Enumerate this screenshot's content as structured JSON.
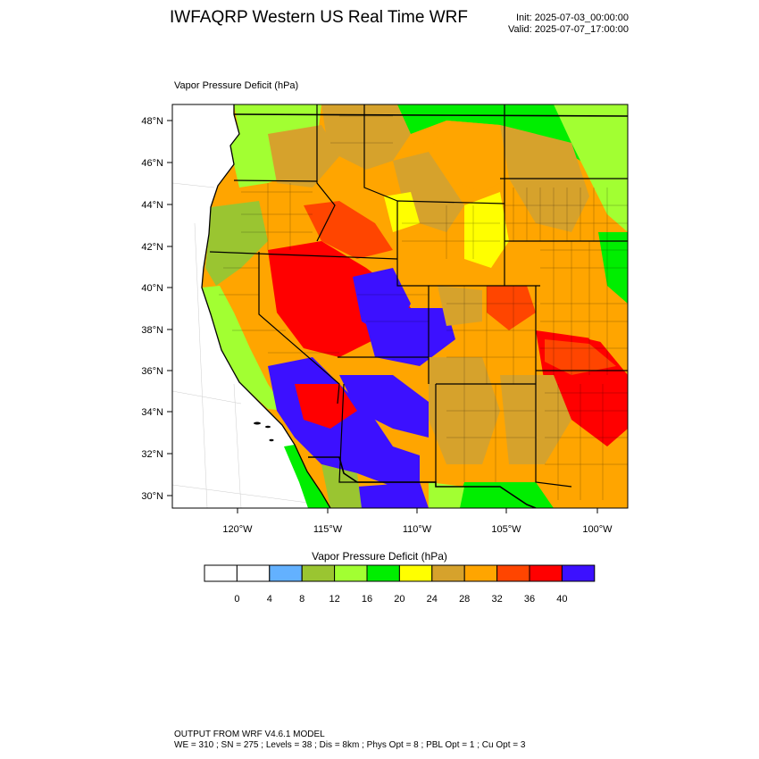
{
  "header": {
    "title": "IWFAQRP Western US Real Time WRF",
    "init": "Init: 2025-07-03_00:00:00",
    "valid": "Valid: 2025-07-07_17:00:00"
  },
  "map": {
    "field_label": "Vapor Pressure Deficit   (hPa)",
    "lat_labels": [
      "48°N",
      "46°N",
      "44°N",
      "42°N",
      "40°N",
      "38°N",
      "36°N",
      "34°N",
      "32°N",
      "30°N"
    ],
    "lon_labels": [
      "120°W",
      "115°W",
      "110°W",
      "105°W",
      "100°W"
    ]
  },
  "colorbar": {
    "title": "Vapor Pressure Deficit  (hPa)",
    "labels": [
      "0",
      "4",
      "8",
      "12",
      "16",
      "20",
      "24",
      "28",
      "32",
      "36",
      "40"
    ],
    "colors": [
      "#ffffff",
      "#ffffff",
      "#63b1ff",
      "#9ac531",
      "#a2ff32",
      "#00ee00",
      "#ffff00",
      "#d6a22c",
      "#ffa500",
      "#ff4500",
      "#ff0000",
      "#3c10ff"
    ]
  },
  "footer": {
    "line1": "OUTPUT FROM WRF V4.6.1 MODEL",
    "line2": "WE = 310 ; SN = 275 ; Levels = 38 ; Dis = 8km ; Phys Opt = 8 ; PBL Opt = 1 ; Cu Opt = 3"
  }
}
